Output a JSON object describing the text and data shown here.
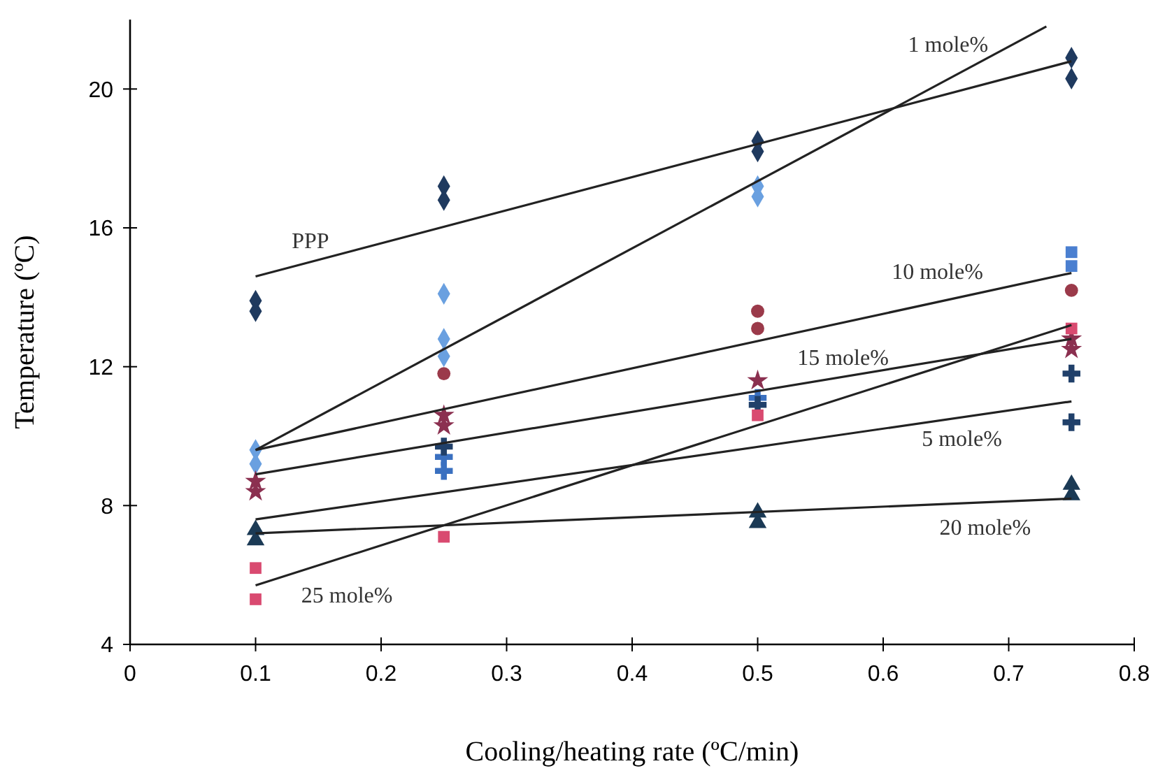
{
  "chart_data": {
    "type": "scatter",
    "xlabel": "Cooling/heating rate (ºC/min)",
    "ylabel": "Temperature (ºC)",
    "xlim": [
      0,
      0.8
    ],
    "xticks": [
      0,
      0.1,
      0.2,
      0.3,
      0.4,
      0.5,
      0.6,
      0.7,
      0.8
    ],
    "ylim": [
      4,
      22
    ],
    "yticks": [
      4,
      8,
      12,
      16,
      20
    ],
    "grid": false,
    "series": [
      {
        "color": "#1f3a5f",
        "marker": "diamond",
        "x": [
          0.1,
          0.1,
          0.25,
          0.25,
          0.5,
          0.5,
          0.75,
          0.75
        ],
        "values": [
          13.9,
          13.6,
          17.2,
          16.8,
          18.5,
          18.2,
          20.9,
          20.3
        ]
      },
      {
        "color": "#6aa0e0",
        "marker": "diamond",
        "x": [
          0.1,
          0.1,
          0.25,
          0.25,
          0.25,
          0.5,
          0.5
        ],
        "values": [
          9.6,
          9.2,
          14.1,
          12.8,
          12.3,
          17.2,
          16.9
        ]
      },
      {
        "color": "#4a7fd0",
        "marker": "square",
        "x": [
          0.75,
          0.75
        ],
        "values": [
          15.3,
          14.9
        ]
      },
      {
        "color": "#9b3a4a",
        "marker": "circle",
        "x": [
          0.25,
          0.5,
          0.5,
          0.75
        ],
        "values": [
          11.8,
          13.6,
          13.1,
          14.2
        ]
      },
      {
        "color": "#8b3050",
        "marker": "star",
        "x": [
          0.1,
          0.1,
          0.25,
          0.25,
          0.5,
          0.75,
          0.75
        ],
        "values": [
          8.7,
          8.4,
          10.6,
          10.3,
          11.6,
          12.8,
          12.5
        ]
      },
      {
        "color": "#3a70c0",
        "marker": "cross",
        "x": [
          0.25,
          0.25,
          0.5
        ],
        "values": [
          9.4,
          9.0,
          11.1
        ]
      },
      {
        "color": "#20406a",
        "marker": "cross",
        "x": [
          0.25,
          0.5,
          0.75,
          0.75
        ],
        "values": [
          9.7,
          10.9,
          11.8,
          10.4
        ]
      },
      {
        "color": "#d94a70",
        "marker": "square",
        "x": [
          0.1,
          0.1,
          0.25,
          0.5,
          0.75
        ],
        "values": [
          6.2,
          5.3,
          7.1,
          10.6,
          13.1
        ]
      },
      {
        "color": "#1b3a55",
        "marker": "triangle",
        "x": [
          0.1,
          0.1,
          0.5,
          0.5,
          0.75,
          0.75
        ],
        "values": [
          7.3,
          7.0,
          7.8,
          7.5,
          8.6,
          8.3
        ]
      },
      {
        "type": "line",
        "name": "PPP",
        "color": "#222222",
        "x": [
          0.1,
          0.75
        ],
        "values": [
          14.6,
          20.8
        ]
      },
      {
        "type": "line",
        "name": "1 mole%",
        "color": "#222222",
        "x": [
          0.1,
          0.73
        ],
        "values": [
          9.6,
          21.8
        ]
      },
      {
        "type": "line",
        "name": "10 mole%",
        "color": "#222222",
        "x": [
          0.1,
          0.75
        ],
        "values": [
          9.6,
          14.7
        ]
      },
      {
        "type": "line",
        "name": "15 mole%",
        "color": "#222222",
        "x": [
          0.1,
          0.75
        ],
        "values": [
          8.9,
          12.8
        ]
      },
      {
        "type": "line",
        "name": "5 mole%",
        "color": "#222222",
        "x": [
          0.1,
          0.75
        ],
        "values": [
          7.6,
          11.0
        ]
      },
      {
        "type": "line",
        "name": "20 mole%",
        "color": "#222222",
        "x": [
          0.1,
          0.75
        ],
        "values": [
          7.2,
          8.2
        ]
      },
      {
        "type": "line",
        "name": "25 mole%",
        "color": "#222222",
        "x": [
          0.1,
          0.75
        ],
        "values": [
          5.7,
          13.2
        ]
      }
    ]
  }
}
